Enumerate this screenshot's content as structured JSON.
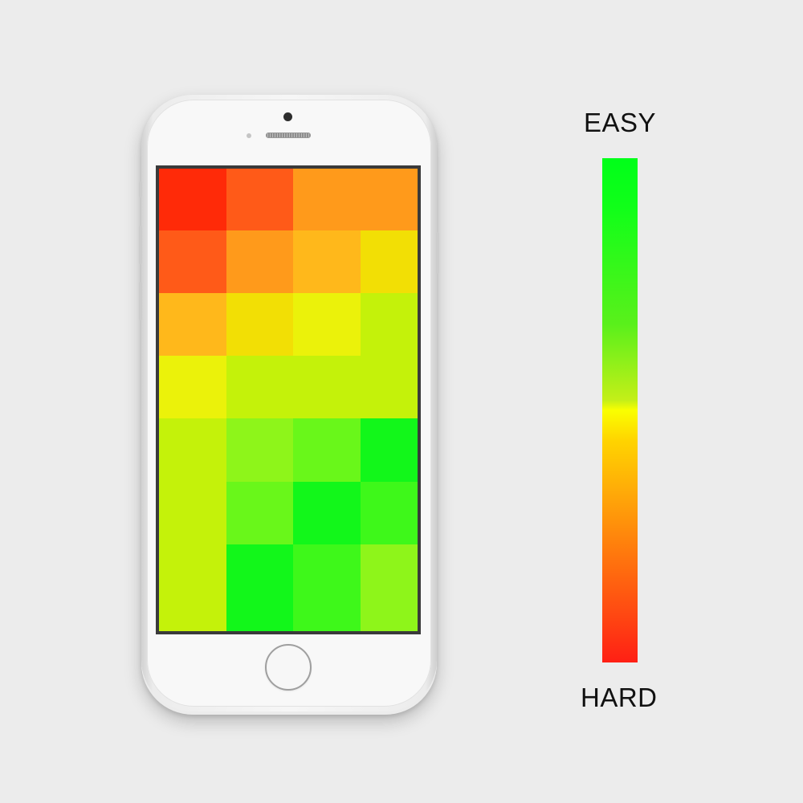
{
  "legend": {
    "top_label": "EASY",
    "bottom_label": "HARD",
    "colors": [
      "#00ff19",
      "#5af01b",
      "#c4ef18",
      "#faff00",
      "#ffab08",
      "#ff7a0d",
      "#ff1f14"
    ]
  },
  "heatmap": {
    "rows": [
      [
        "#ff2a08",
        "#ff5a18",
        "#ff9a1b",
        "#ff9a1b"
      ],
      [
        "#ff5a18",
        "#ff9a1b",
        "#ffb81b",
        "#f2df05"
      ],
      [
        "#ffb81b",
        "#f2df05",
        "#ebf20a",
        "#c4f20a"
      ],
      [
        "#ebf20a",
        "#c4f20a",
        "#c4f20a",
        "#c4f20a"
      ],
      [
        "#c4f20a",
        "#8ef51a",
        "#69f71a",
        "#12f71a"
      ],
      [
        "#c4f20a",
        "#69f71a",
        "#12f71a",
        "#3ef81a"
      ],
      [
        "#c4f20a",
        "#12f71a",
        "#3ef81a",
        "#8ef51a"
      ]
    ]
  },
  "icons": {
    "camera": "front-camera-icon",
    "speaker": "earpiece-speaker-icon",
    "sensor": "proximity-sensor-icon",
    "home": "home-button-icon"
  }
}
